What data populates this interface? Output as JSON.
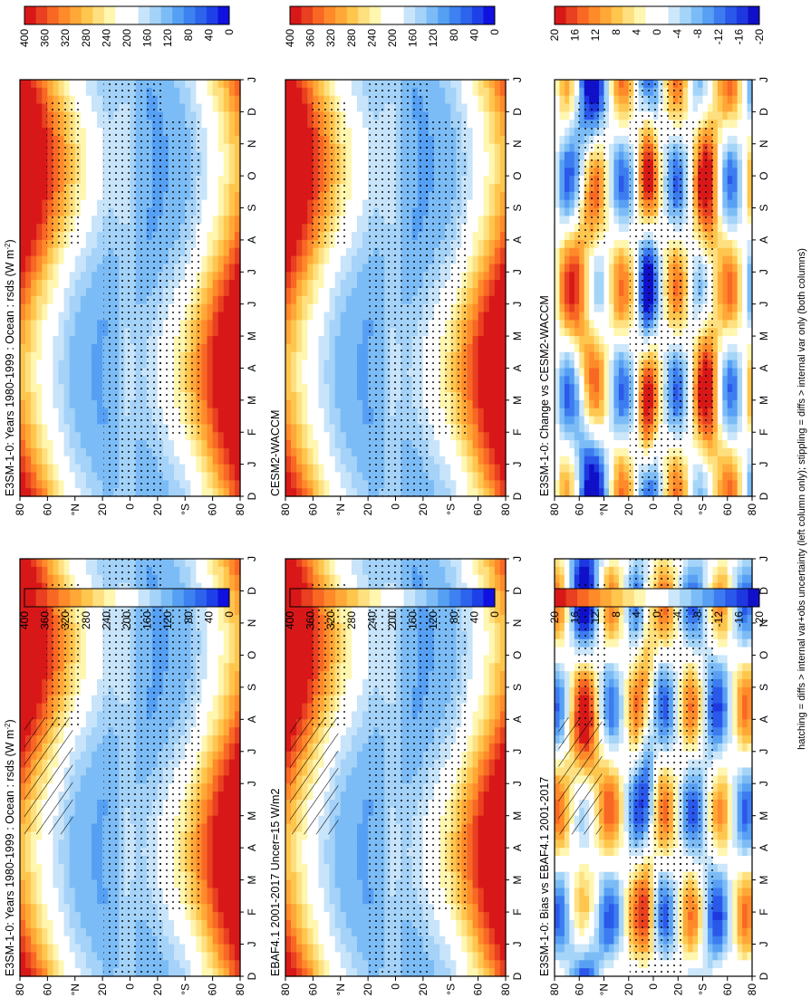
{
  "footnote": "hatching = diffs > internal var+obs uncertainty (left column only); stippling = diffs > internal var only (both columns)",
  "colors": {
    "abs_scale": [
      "#1010e0",
      "#1e40e8",
      "#2c64ec",
      "#3d82f0",
      "#56a0f4",
      "#7cbcf6",
      "#a4d2f8",
      "#c8e4fa",
      "#ffffff",
      "#ffffff",
      "#fff6b0",
      "#ffe080",
      "#ffc64e",
      "#ffa838",
      "#ff8a2a",
      "#f86824",
      "#e84020",
      "#d81818"
    ],
    "diff_scale": [
      "#1010c8",
      "#1e38e0",
      "#2a58ea",
      "#3c7cf0",
      "#58a0f4",
      "#7cbcf6",
      "#a4d4f8",
      "#cce6fa",
      "#ffffff",
      "#ffffff",
      "#fff6b0",
      "#ffe080",
      "#ffc64e",
      "#ffa838",
      "#ff8a2a",
      "#f86824",
      "#e84020",
      "#d81818"
    ]
  },
  "panels": [
    {
      "id": "e3sm-left",
      "title": "E3SM-1-0: Years 1980-1999 : Ocean : rsds (W m",
      "title_sup": "-2",
      "title_tail": ")",
      "kind": "abs",
      "hatch": true
    },
    {
      "id": "ebaf",
      "title": "EBAF4.1 2001-2017 Uncer=15 W/m2",
      "title_sup": "",
      "title_tail": "",
      "kind": "abs",
      "hatch": true
    },
    {
      "id": "bias",
      "title": "E3SM-1-0: Bias vs EBAF4.1 2001-2017",
      "title_sup": "",
      "title_tail": "",
      "kind": "bias",
      "hatch": true
    },
    {
      "id": "e3sm-right",
      "title": "E3SM-1-0: Years 1980-1999 : Ocean : rsds (W m",
      "title_sup": "-2",
      "title_tail": ")",
      "kind": "abs",
      "hatch": false
    },
    {
      "id": "cesm",
      "title": "CESM2-WACCM",
      "title_sup": "",
      "title_tail": "",
      "kind": "abs",
      "hatch": false
    },
    {
      "id": "change",
      "title": "E3SM-1-0: Change vs CESM2-WACCM",
      "title_sup": "",
      "title_tail": "",
      "kind": "change",
      "hatch": false
    }
  ],
  "chart_data": {
    "type": "heatmap",
    "months": [
      "D",
      "J",
      "F",
      "M",
      "A",
      "M",
      "J",
      "J",
      "A",
      "S",
      "O",
      "N",
      "D",
      "J"
    ],
    "lat_ticks": [
      "80",
      "60",
      "°N",
      "20",
      "0",
      "20",
      "°S",
      "60",
      "80"
    ],
    "colorbars": {
      "abs": [
        "400",
        "360",
        "320",
        "280",
        "240",
        "200",
        "160",
        "120",
        "80",
        "40",
        "0"
      ],
      "bias": [
        "20",
        "16",
        "12",
        "8",
        "4",
        "0",
        "-4",
        "-8",
        "-12",
        "-16",
        "-20"
      ],
      "change": [
        "20",
        "16",
        "12",
        "8",
        "4",
        "0",
        "-4",
        "-8",
        "-12",
        "-16",
        "-20"
      ]
    },
    "variable": "rsds",
    "units": "W m-2"
  }
}
